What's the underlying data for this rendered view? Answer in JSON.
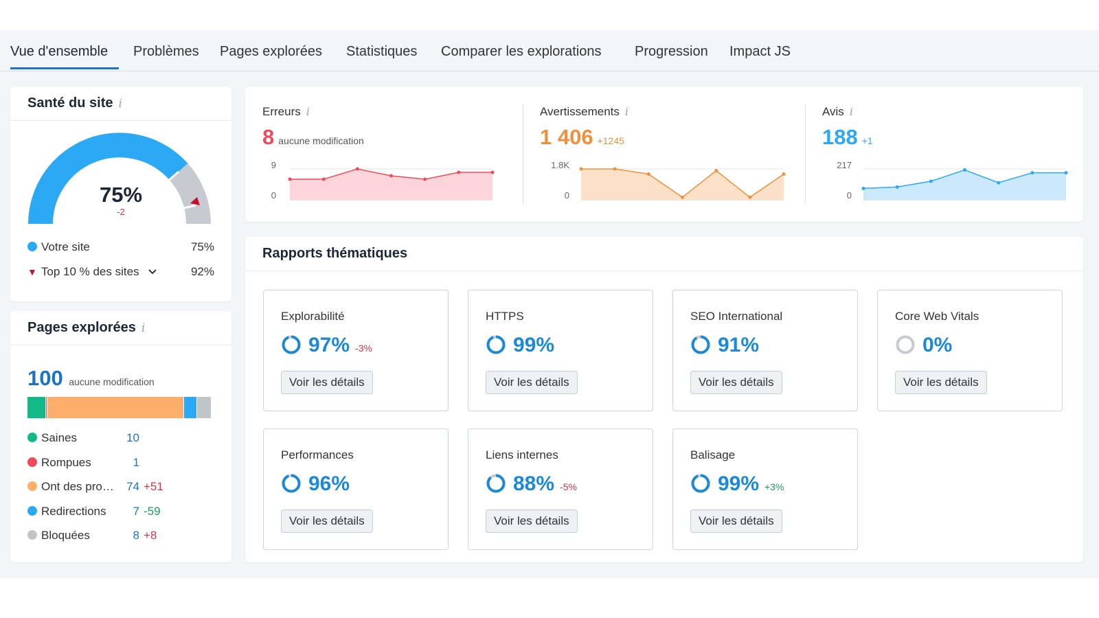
{
  "tabs": [
    {
      "label": "Vue d'ensemble",
      "active": true
    },
    {
      "label": "Problèmes"
    },
    {
      "label": "Pages explorées"
    },
    {
      "label": "Statistiques"
    },
    {
      "label": "Comparer les explorations"
    },
    {
      "label": "Progression"
    },
    {
      "label": "Impact JS"
    }
  ],
  "site_health": {
    "title": "Santé du site",
    "info_icon": "i",
    "score": "75%",
    "delta": "-2",
    "legend": [
      {
        "label": "Votre site",
        "value": "75%",
        "color": "#2ba9f4"
      },
      {
        "label": "Top 10 % des sites",
        "value": "92%",
        "color": "#c8102e"
      }
    ]
  },
  "crawled_pages": {
    "title": "Pages explorées",
    "total": "100",
    "total_note": "aucune modification",
    "colors": {
      "healthy": "#12b886",
      "broken": "#ef4b5c",
      "issues": "#fdae6b",
      "redirects": "#2ba9f4",
      "blocked": "#c0c5cc"
    },
    "items": [
      {
        "label": "Saines",
        "value": "10",
        "delta": ""
      },
      {
        "label": "Rompues",
        "value": "1",
        "delta": ""
      },
      {
        "label": "Ont des pro…",
        "value": "74",
        "delta": "+51"
      },
      {
        "label": "Redirections",
        "value": "7",
        "delta": "-59"
      },
      {
        "label": "Bloquées",
        "value": "8",
        "delta": "+8"
      }
    ]
  },
  "metrics": {
    "errors": {
      "label": "Erreurs",
      "value": "8",
      "delta": "aucune modification",
      "y_max": "9",
      "y_min": "0",
      "color": "#ef4b5c",
      "fill": "#fbd5da",
      "series": [
        6,
        6,
        9,
        7,
        6,
        8,
        8
      ]
    },
    "warnings": {
      "label": "Avertissements",
      "value": "1 406",
      "delta": "+1245",
      "y_max": "1.8K",
      "y_min": "0",
      "color": "#f0903c",
      "fill": "#fde0c8",
      "series": [
        1800,
        1800,
        1500,
        150,
        1700,
        150,
        1500
      ]
    },
    "notices": {
      "label": "Avis",
      "value": "188",
      "delta": "+1",
      "y_max": "217",
      "y_min": "0",
      "color": "#2ba9f4",
      "fill": "#cbe9fb",
      "series": [
        80,
        90,
        130,
        210,
        120,
        190,
        190
      ]
    }
  },
  "thematic": {
    "title": "Rapports thématiques",
    "button_label": "Voir les détails",
    "reports": [
      {
        "title": "Explorabilité",
        "value": "97%",
        "delta": "-3%",
        "delta_type": "neg",
        "fill": 0.97
      },
      {
        "title": "HTTPS",
        "value": "99%",
        "delta": "",
        "delta_type": "",
        "fill": 0.99
      },
      {
        "title": "SEO International",
        "value": "91%",
        "delta": "",
        "delta_type": "",
        "fill": 0.91
      },
      {
        "title": "Core Web Vitals",
        "value": "0%",
        "delta": "",
        "delta_type": "",
        "fill": 0
      },
      {
        "title": "Performances",
        "value": "96%",
        "delta": "",
        "delta_type": "",
        "fill": 0.96
      },
      {
        "title": "Liens internes",
        "value": "88%",
        "delta": "-5%",
        "delta_type": "neg",
        "fill": 0.88
      },
      {
        "title": "Balisage",
        "value": "99%",
        "delta": "+3%",
        "delta_type": "pos",
        "fill": 0.99
      }
    ]
  }
}
